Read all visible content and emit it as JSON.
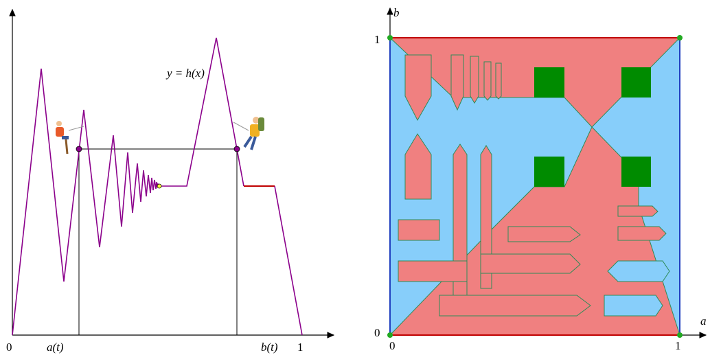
{
  "left": {
    "labels": {
      "origin": "0",
      "a": "a(t)",
      "b": "b(t)",
      "one": "1",
      "curve": "y = h(x)"
    }
  },
  "right": {
    "labels": {
      "b_axis": "b",
      "b_one": "1",
      "b_zero": "0",
      "a_zero": "0",
      "a_one": "1",
      "a_axis": "a"
    }
  }
}
